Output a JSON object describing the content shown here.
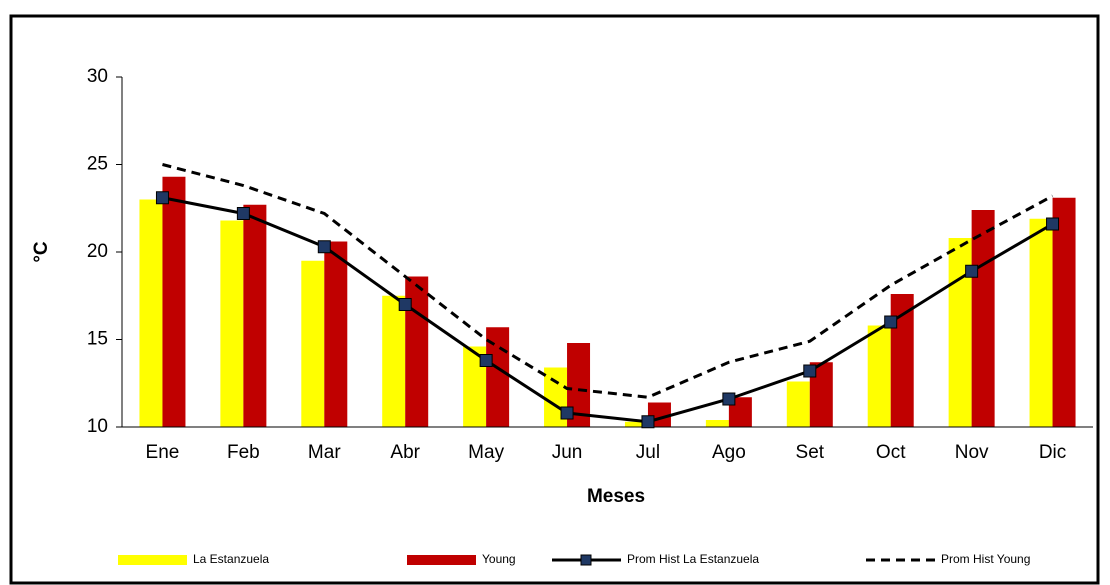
{
  "chart_data": {
    "type": "bar-line",
    "y_label": "°C",
    "x_label": "Meses",
    "categories": [
      "Ene",
      "Feb",
      "Mar",
      "Abr",
      "May",
      "Jun",
      "Jul",
      "Ago",
      "Set",
      "Oct",
      "Nov",
      "Dic"
    ],
    "ylim": [
      10,
      30
    ],
    "yticks": [
      10,
      15,
      20,
      25,
      30
    ],
    "series": [
      {
        "name": "La Estanzuela",
        "type": "bar",
        "color": "#ffff00",
        "values": [
          23.0,
          21.8,
          19.5,
          17.5,
          14.6,
          13.4,
          10.3,
          10.4,
          12.6,
          15.8,
          20.8,
          21.9
        ]
      },
      {
        "name": "Young",
        "type": "bar",
        "color": "#c00000",
        "values": [
          24.3,
          22.7,
          20.6,
          18.6,
          15.7,
          14.8,
          11.4,
          11.7,
          13.7,
          17.6,
          22.4,
          23.1
        ]
      },
      {
        "name": "Prom Hist La Estanzuela",
        "type": "line",
        "color": "#000000",
        "dash": false,
        "marker": "square",
        "marker_color": "#1f3864",
        "values": [
          23.1,
          22.2,
          20.3,
          17.0,
          13.8,
          10.8,
          10.3,
          11.6,
          13.2,
          16.0,
          18.9,
          21.6
        ]
      },
      {
        "name": "Prom Hist Young",
        "type": "line",
        "color": "#000000",
        "dash": true,
        "values": [
          25.0,
          23.8,
          22.2,
          18.6,
          15.0,
          12.2,
          11.7,
          13.7,
          14.9,
          18.1,
          20.7,
          23.2
        ]
      }
    ]
  }
}
